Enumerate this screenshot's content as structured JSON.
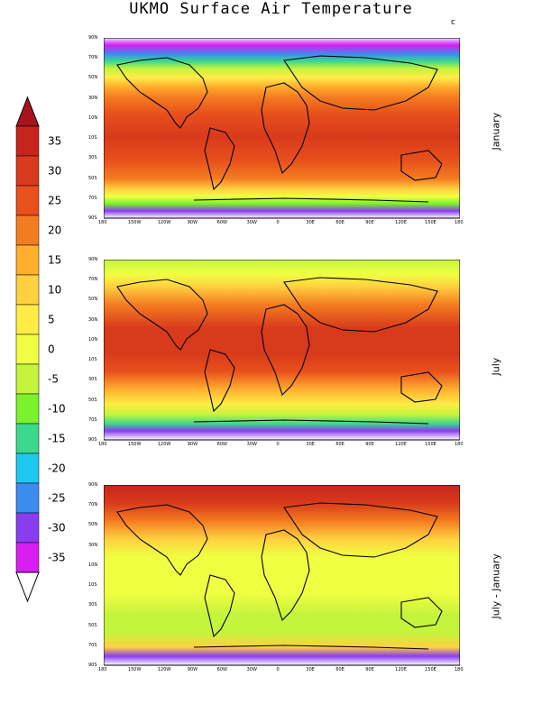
{
  "title": "UKMO Surface Air Temperature",
  "corner_mark": "c",
  "colorbar": {
    "labels": [
      "35",
      "30",
      "25",
      "20",
      "15",
      "10",
      "5",
      "0",
      "-5",
      "-10",
      "-15",
      "-20",
      "-25",
      "-30",
      "-35"
    ],
    "colors": [
      "#c8241e",
      "#d83a1c",
      "#e8501c",
      "#f47c20",
      "#ffae2e",
      "#ffd040",
      "#ffec46",
      "#f0ff42",
      "#c4f43c",
      "#7af22e",
      "#3cd88c",
      "#1ec8f0",
      "#3c8cf0",
      "#8a3cf0",
      "#d81ef0"
    ],
    "top_arrow_color": "#a8141e",
    "bottom_arrow_color": "#ffffff"
  },
  "panels": [
    {
      "name": "January",
      "label": "January"
    },
    {
      "name": "July",
      "label": "July"
    },
    {
      "name": "diff",
      "label": "July - January"
    }
  ],
  "lon_labels": [
    "180",
    "150W",
    "120W",
    "90W",
    "60W",
    "30W",
    "0",
    "30E",
    "60E",
    "90E",
    "120E",
    "150E",
    "180"
  ],
  "lat_labels": [
    "90N",
    "70N",
    "50N",
    "30N",
    "10N",
    "10S",
    "30S",
    "50S",
    "70S",
    "90S"
  ]
}
